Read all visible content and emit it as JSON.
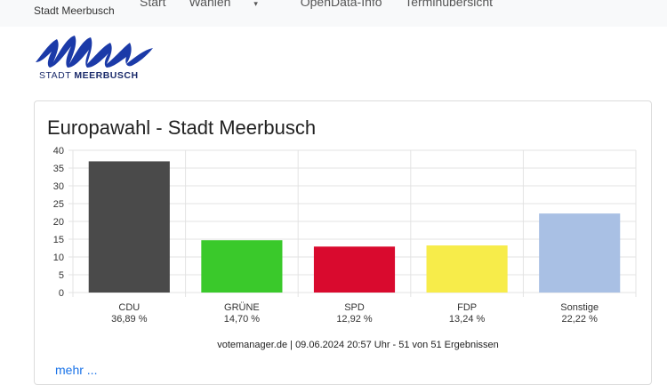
{
  "nav": {
    "brand": "Stadt Meerbusch",
    "items": [
      "Start",
      "Wahlen",
      "OpenData-Info",
      "Terminübersicht"
    ]
  },
  "logo": {
    "text_prefix": "STADT ",
    "text_bold": "MEERBUSCH"
  },
  "card": {
    "title": "Europawahl - Stadt Meerbusch",
    "footnote": "votemanager.de | 09.06.2024 20:57 Uhr - 51 von 51 Ergebnissen",
    "more_link": "mehr ..."
  },
  "chart_data": {
    "type": "bar",
    "categories": [
      "CDU",
      "GRÜNE",
      "SPD",
      "FDP",
      "Sonstige"
    ],
    "value_labels": [
      "36,89 %",
      "14,70 %",
      "12,92 %",
      "13,24 %",
      "22,22 %"
    ],
    "values": [
      36.89,
      14.7,
      12.92,
      13.24,
      22.22
    ],
    "colors": [
      "#4a4a4a",
      "#3ac92b",
      "#d90a2e",
      "#f7ec4a",
      "#a9c0e4"
    ],
    "ylim": [
      0,
      40
    ],
    "yticks": [
      0,
      5,
      10,
      15,
      20,
      25,
      30,
      35,
      40
    ],
    "grid": true,
    "title": "Europawahl - Stadt Meerbusch"
  }
}
